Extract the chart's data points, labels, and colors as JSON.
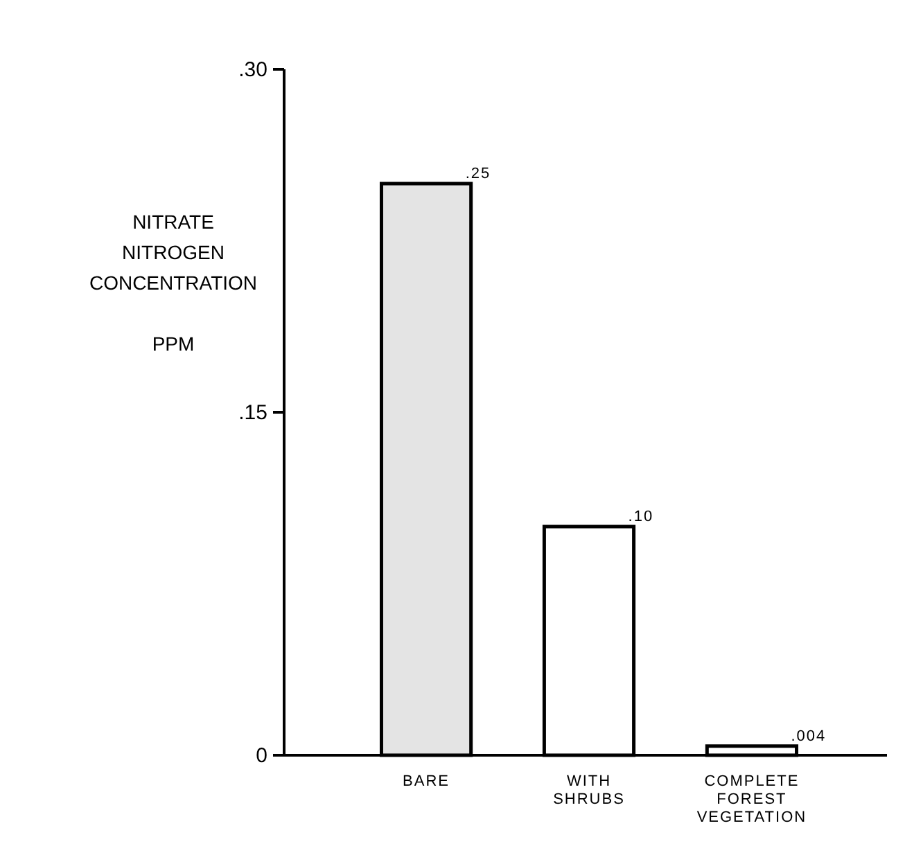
{
  "chart_data": {
    "type": "bar",
    "categories": [
      "BARE",
      "WITH SHRUBS",
      "COMPLETE FOREST VEGETATION"
    ],
    "values": [
      0.25,
      0.1,
      0.004
    ],
    "value_labels": [
      ".25",
      ".10",
      ".004"
    ],
    "colors": [
      "#e4e4e4",
      "#ffffff",
      "#ffffff"
    ],
    "ylabel": "NITRATE\nNITROGEN\nCONCENTRATION\n\nPPM",
    "ylim": [
      0,
      0.3
    ],
    "yticks": [
      0,
      {
        "value": 0.15,
        "label": ".15"
      },
      {
        "value": 0.3,
        "label": ".30"
      }
    ],
    "grid": false
  }
}
